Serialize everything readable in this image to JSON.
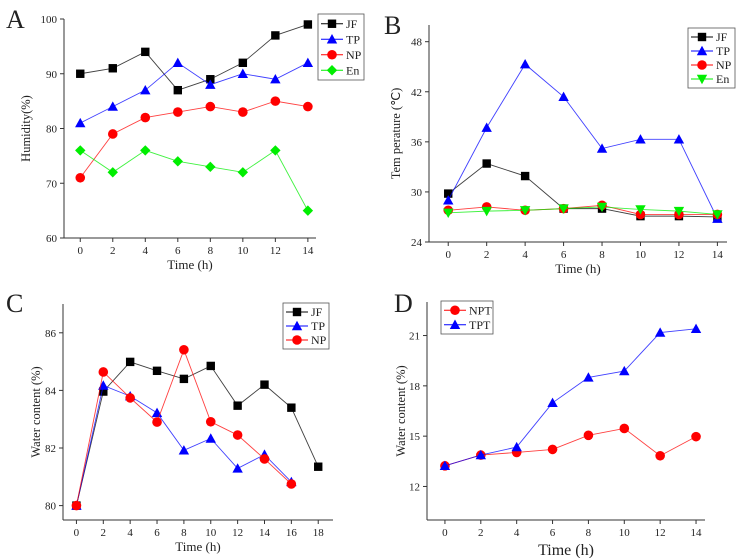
{
  "chart_data": [
    {
      "panel_label": "A",
      "type": "line",
      "title": "",
      "xlabel": "Time (h)",
      "ylabel": "Humidity(%)",
      "xlim": [
        -1,
        14.5
      ],
      "ylim": [
        60,
        100
      ],
      "xticks": [
        0,
        2,
        4,
        6,
        8,
        10,
        12,
        14
      ],
      "yticks": [
        60,
        70,
        80,
        90,
        100
      ],
      "legend_position": "top-right",
      "grid": false,
      "x": [
        0,
        2,
        4,
        6,
        8,
        10,
        12,
        14
      ],
      "series": [
        {
          "name": "JF",
          "color": "#000000",
          "marker": "square",
          "values": [
            90,
            91,
            94,
            87,
            89,
            92,
            97,
            99
          ]
        },
        {
          "name": "TP",
          "color": "#0000ff",
          "marker": "triangle-up",
          "values": [
            81,
            84,
            87,
            92,
            88,
            90,
            89,
            92
          ]
        },
        {
          "name": "NP",
          "color": "#ff0000",
          "marker": "circle",
          "values": [
            71,
            79,
            82,
            83,
            84,
            83,
            85,
            84
          ]
        },
        {
          "name": "En",
          "color": "#00ee00",
          "marker": "diamond",
          "values": [
            76,
            72,
            76,
            74,
            73,
            72,
            76,
            65
          ]
        }
      ]
    },
    {
      "panel_label": "B",
      "type": "line",
      "title": "",
      "xlabel": "Time (h)",
      "ylabel": "Tem perature (℃)",
      "xlim": [
        -1,
        14.5
      ],
      "ylim": [
        24,
        50
      ],
      "xticks": [
        0,
        2,
        4,
        6,
        8,
        10,
        12,
        14
      ],
      "yticks": [
        24,
        30,
        36,
        42,
        48
      ],
      "legend_position": "top-right",
      "grid": false,
      "x": [
        0,
        2,
        4,
        6,
        8,
        10,
        12,
        14
      ],
      "series": [
        {
          "name": "JF",
          "color": "#000000",
          "marker": "square",
          "values": [
            29.8,
            33.4,
            31.9,
            28.0,
            28.0,
            27.1,
            27.1,
            27.0
          ]
        },
        {
          "name": "TP",
          "color": "#0000ff",
          "marker": "triangle-up",
          "values": [
            29.0,
            37.7,
            45.3,
            41.4,
            35.2,
            36.3,
            36.3,
            26.8
          ]
        },
        {
          "name": "NP",
          "color": "#ff0000",
          "marker": "circle",
          "values": [
            27.8,
            28.2,
            27.8,
            28.0,
            28.4,
            27.3,
            27.3,
            27.3
          ]
        },
        {
          "name": "En",
          "color": "#00ee00",
          "marker": "triangle-down",
          "values": [
            27.5,
            27.7,
            27.8,
            28.0,
            28.2,
            27.9,
            27.7,
            27.3
          ]
        }
      ]
    },
    {
      "panel_label": "C",
      "type": "line",
      "title": "",
      "xlabel": "Time (h)",
      "ylabel": "Water content (%)",
      "xlim": [
        -1,
        19.1
      ],
      "ylim": [
        79.5,
        87
      ],
      "xticks": [
        0,
        2,
        4,
        6,
        8,
        10,
        12,
        14,
        16,
        18
      ],
      "yticks": [
        80,
        82,
        84,
        86
      ],
      "legend_position": "top-right",
      "grid": false,
      "x": [
        0,
        2,
        4,
        6,
        8,
        10,
        12,
        14,
        16,
        18
      ],
      "series": [
        {
          "name": "JF",
          "color": "#000000",
          "marker": "square",
          "values": [
            80.0,
            83.96,
            84.99,
            84.68,
            84.4,
            84.85,
            83.47,
            84.2,
            83.4,
            81.35
          ]
        },
        {
          "name": "TP",
          "color": "#0000ff",
          "marker": "triangle-up",
          "values": [
            80.0,
            84.17,
            83.8,
            83.22,
            81.92,
            82.33,
            81.29,
            81.77,
            80.82,
            null
          ]
        },
        {
          "name": "NP",
          "color": "#ff0000",
          "marker": "circle",
          "values": [
            80.0,
            84.64,
            83.74,
            82.9,
            85.41,
            82.91,
            82.45,
            81.62,
            80.75,
            null
          ]
        }
      ]
    },
    {
      "panel_label": "D",
      "type": "line",
      "title": "",
      "xlabel": "Time (h)",
      "ylabel": "Water content (%)",
      "xlim": [
        -1,
        14.5
      ],
      "ylim": [
        10,
        23
      ],
      "xticks": [
        0,
        2,
        4,
        6,
        8,
        10,
        12,
        14
      ],
      "yticks": [
        12,
        15,
        18,
        21
      ],
      "legend_position": "top-left",
      "grid": false,
      "x": [
        0,
        2,
        4,
        6,
        8,
        10,
        12,
        14
      ],
      "series": [
        {
          "name": "NPT",
          "color": "#ff0000",
          "marker": "circle",
          "values": [
            13.23,
            13.87,
            14.03,
            14.21,
            15.05,
            15.46,
            13.83,
            14.97
          ]
        },
        {
          "name": "TPT",
          "color": "#0000ff",
          "marker": "triangle-up",
          "values": [
            13.23,
            13.87,
            14.35,
            16.99,
            18.5,
            18.88,
            21.18,
            21.4
          ]
        }
      ]
    }
  ]
}
